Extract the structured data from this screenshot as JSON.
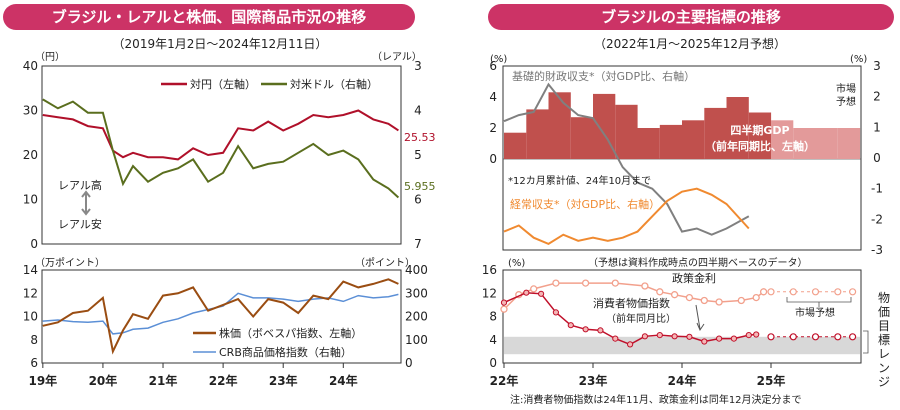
{
  "left_panel": {
    "title": "ブラジル・レアルと株価、国際商品市況の推移",
    "subtitle": "（2019年1月2日～2024年12月11日）",
    "top_chart": {
      "left_unit": "（円）",
      "right_unit": "（レアル）",
      "left_ticks": [
        "40",
        "30",
        "20",
        "10",
        "0"
      ],
      "right_ticks": [
        "3",
        "4",
        "5",
        "6",
        "7"
      ],
      "legend": [
        "対円（左軸）",
        "対米ドル（右軸）"
      ],
      "annotation_high": "レアル高",
      "annotation_low": "レアル安",
      "end_label_jpy": "25.53",
      "end_label_usd": "5.955"
    },
    "bottom_chart": {
      "left_unit": "（万ポイント）",
      "right_unit": "（ポイント）",
      "left_ticks": [
        "14",
        "12",
        "10",
        "8",
        "6"
      ],
      "right_ticks": [
        "400",
        "300",
        "200",
        "100",
        "0"
      ],
      "legend": [
        "株価（ボベスパ指数、左軸）",
        "CRB商品価格指数（右軸）"
      ]
    },
    "x_labels": [
      "19年",
      "20年",
      "21年",
      "22年",
      "23年",
      "24年"
    ]
  },
  "right_panel": {
    "title": "ブラジルの主要指標の推移",
    "subtitle": "（2022年1月～2025年12月予想）",
    "top_chart": {
      "left_unit": "(%)",
      "right_unit": "(%)",
      "left_ticks": [
        "6",
        "4",
        "2",
        "0"
      ],
      "right_ticks": [
        "3",
        "2",
        "1",
        "0",
        "-1",
        "-2",
        "-3"
      ],
      "label_fiscal": "基礎的財政収支*（対GDP比、右軸）",
      "label_gdp_1": "四半期GDP",
      "label_gdp_2": "（前年同期比、左軸）",
      "label_market_1": "市場",
      "label_market_2": "予想",
      "footnote": "*12カ月累計値、24年10月まで",
      "label_current": "経常収支*（対GDP比、右軸）"
    },
    "bottom_chart": {
      "unit": "(%)",
      "note": "（予想は資料作成時点の四半期ベースのデータ）",
      "ticks": [
        "16",
        "12",
        "8",
        "4",
        "0"
      ],
      "label_policy": "政策金利",
      "label_cpi_1": "消費者物価指数",
      "label_cpi_2": "（前年同月比）",
      "label_market": "市場予想",
      "label_target": "物価目標レンジ"
    },
    "x_labels": [
      "22年",
      "23年",
      "24年",
      "25年"
    ],
    "footnote": "注:消費者物価指数は24年11月、政策金利は同年12月決定分まで"
  },
  "colors": {
    "title_bg": "#cc3366",
    "jpy": "#b0102a",
    "usd": "#5a6e1e",
    "stock": "#9a4d12",
    "crb": "#5b8fd6",
    "gdp_bar": "#c0504d",
    "gdp_forecast": "#e39a9a",
    "fiscal": "#808080",
    "current": "#f08a30",
    "cpi": "#c0102a",
    "policy": "#f2a08c",
    "target_band": "#d8d8d8"
  },
  "chart_data": [
    {
      "type": "line",
      "x_range": [
        "2019-01-02",
        "2024-12-11"
      ],
      "ylim_left": [
        0,
        40
      ],
      "ylim_right_inverted": [
        3,
        7
      ],
      "series": [
        {
          "name": "対円（左軸）",
          "axis": "left",
          "points": [
            [
              "2019-01",
              29.0
            ],
            [
              "2019-04",
              28.5
            ],
            [
              "2019-07",
              28.0
            ],
            [
              "2019-10",
              26.5
            ],
            [
              "2020-01",
              26.0
            ],
            [
              "2020-03",
              21.0
            ],
            [
              "2020-05",
              19.5
            ],
            [
              "2020-07",
              20.5
            ],
            [
              "2020-10",
              19.5
            ],
            [
              "2021-01",
              19.5
            ],
            [
              "2021-04",
              19.0
            ],
            [
              "2021-07",
              21.5
            ],
            [
              "2021-10",
              20.0
            ],
            [
              "2022-01",
              20.5
            ],
            [
              "2022-04",
              26.0
            ],
            [
              "2022-07",
              25.5
            ],
            [
              "2022-10",
              27.5
            ],
            [
              "2023-01",
              25.5
            ],
            [
              "2023-04",
              27.0
            ],
            [
              "2023-07",
              29.0
            ],
            [
              "2023-10",
              28.5
            ],
            [
              "2024-01",
              29.0
            ],
            [
              "2024-04",
              30.0
            ],
            [
              "2024-07",
              28.0
            ],
            [
              "2024-10",
              27.0
            ],
            [
              "2024-12",
              25.53
            ]
          ]
        },
        {
          "name": "対米ドル（右軸）",
          "axis": "right",
          "points": [
            [
              "2019-01",
              3.75
            ],
            [
              "2019-04",
              3.95
            ],
            [
              "2019-07",
              3.8
            ],
            [
              "2019-10",
              4.05
            ],
            [
              "2020-01",
              4.05
            ],
            [
              "2020-03",
              4.9
            ],
            [
              "2020-05",
              5.65
            ],
            [
              "2020-07",
              5.25
            ],
            [
              "2020-10",
              5.6
            ],
            [
              "2021-01",
              5.4
            ],
            [
              "2021-04",
              5.3
            ],
            [
              "2021-07",
              5.1
            ],
            [
              "2021-10",
              5.6
            ],
            [
              "2022-01",
              5.4
            ],
            [
              "2022-04",
              4.8
            ],
            [
              "2022-07",
              5.3
            ],
            [
              "2022-10",
              5.2
            ],
            [
              "2023-01",
              5.15
            ],
            [
              "2023-04",
              4.95
            ],
            [
              "2023-07",
              4.75
            ],
            [
              "2023-10",
              5.0
            ],
            [
              "2024-01",
              4.9
            ],
            [
              "2024-04",
              5.1
            ],
            [
              "2024-07",
              5.55
            ],
            [
              "2024-10",
              5.75
            ],
            [
              "2024-12",
              5.955
            ]
          ]
        }
      ]
    },
    {
      "type": "line",
      "x_range": [
        "2019-01-02",
        "2024-12-11"
      ],
      "ylim_left": [
        6,
        14
      ],
      "ylim_right": [
        0,
        400
      ],
      "series": [
        {
          "name": "株価（ボベスパ指数、左軸）",
          "axis": "left",
          "points": [
            [
              "2019-01",
              9.2
            ],
            [
              "2019-04",
              9.5
            ],
            [
              "2019-07",
              10.3
            ],
            [
              "2019-10",
              10.5
            ],
            [
              "2020-01",
              11.6
            ],
            [
              "2020-03",
              7.0
            ],
            [
              "2020-05",
              8.8
            ],
            [
              "2020-07",
              10.2
            ],
            [
              "2020-10",
              9.8
            ],
            [
              "2021-01",
              11.8
            ],
            [
              "2021-04",
              12.0
            ],
            [
              "2021-07",
              12.5
            ],
            [
              "2021-10",
              10.5
            ],
            [
              "2022-01",
              11.0
            ],
            [
              "2022-04",
              11.5
            ],
            [
              "2022-07",
              10.0
            ],
            [
              "2022-10",
              11.5
            ],
            [
              "2023-01",
              11.2
            ],
            [
              "2023-04",
              10.3
            ],
            [
              "2023-07",
              11.8
            ],
            [
              "2023-10",
              11.5
            ],
            [
              "2024-01",
              13.0
            ],
            [
              "2024-04",
              12.5
            ],
            [
              "2024-07",
              12.8
            ],
            [
              "2024-10",
              13.2
            ],
            [
              "2024-12",
              12.8
            ]
          ]
        },
        {
          "name": "CRB商品価格指数（右軸）",
          "axis": "right",
          "points": [
            [
              "2019-01",
              180
            ],
            [
              "2019-04",
              185
            ],
            [
              "2019-07",
              178
            ],
            [
              "2019-10",
              175
            ],
            [
              "2020-01",
              180
            ],
            [
              "2020-03",
              125
            ],
            [
              "2020-05",
              130
            ],
            [
              "2020-07",
              145
            ],
            [
              "2020-10",
              150
            ],
            [
              "2021-01",
              175
            ],
            [
              "2021-04",
              190
            ],
            [
              "2021-07",
              215
            ],
            [
              "2021-10",
              230
            ],
            [
              "2022-01",
              245
            ],
            [
              "2022-04",
              300
            ],
            [
              "2022-07",
              280
            ],
            [
              "2022-10",
              280
            ],
            [
              "2023-01",
              275
            ],
            [
              "2023-04",
              265
            ],
            [
              "2023-07",
              275
            ],
            [
              "2023-10",
              280
            ],
            [
              "2024-01",
              265
            ],
            [
              "2024-04",
              290
            ],
            [
              "2024-07",
              280
            ],
            [
              "2024-10",
              285
            ],
            [
              "2024-12",
              295
            ]
          ]
        }
      ]
    },
    {
      "type": "bar",
      "x_range": [
        "2022-01",
        "2025-12"
      ],
      "ylim_left": [
        0,
        6
      ],
      "ylim_right": [
        -3,
        3
      ],
      "categories": [
        "22Q1",
        "22Q2",
        "22Q3",
        "22Q4",
        "23Q1",
        "23Q2",
        "23Q3",
        "23Q4",
        "24Q1",
        "24Q2",
        "24Q3",
        "24Q4",
        "25Q1",
        "25Q2",
        "25Q3",
        "25Q4"
      ],
      "series": [
        {
          "name": "四半期GDP（前年同期比、左軸）",
          "axis": "left",
          "values": [
            1.7,
            3.2,
            4.3,
            2.7,
            4.2,
            3.5,
            2.0,
            2.2,
            2.5,
            3.3,
            4.0,
            3.0,
            2.5,
            2.0,
            2.0,
            2.0
          ],
          "forecast_from": "25Q1"
        },
        {
          "name": "基礎的財政収支*（対GDP比、右軸）",
          "axis": "right",
          "type": "line",
          "points": [
            [
              "2022-01",
              1.2
            ],
            [
              "2022-03",
              1.4
            ],
            [
              "2022-05",
              1.5
            ],
            [
              "2022-07",
              2.4
            ],
            [
              "2022-09",
              1.8
            ],
            [
              "2022-11",
              1.4
            ],
            [
              "2023-01",
              1.3
            ],
            [
              "2023-03",
              0.6
            ],
            [
              "2023-05",
              -0.3
            ],
            [
              "2023-07",
              -0.8
            ],
            [
              "2023-09",
              -1.0
            ],
            [
              "2023-11",
              -1.5
            ],
            [
              "2024-01",
              -2.4
            ],
            [
              "2024-03",
              -2.3
            ],
            [
              "2024-05",
              -2.5
            ],
            [
              "2024-07",
              -2.3
            ],
            [
              "2024-10",
              -1.9
            ]
          ]
        },
        {
          "name": "経常収支*（対GDP比、右軸）",
          "axis": "right",
          "type": "line",
          "points": [
            [
              "2022-01",
              -2.4
            ],
            [
              "2022-03",
              -2.2
            ],
            [
              "2022-05",
              -2.6
            ],
            [
              "2022-07",
              -2.8
            ],
            [
              "2022-09",
              -2.5
            ],
            [
              "2022-11",
              -2.7
            ],
            [
              "2023-01",
              -2.6
            ],
            [
              "2023-03",
              -2.7
            ],
            [
              "2023-05",
              -2.6
            ],
            [
              "2023-07",
              -2.4
            ],
            [
              "2023-09",
              -1.9
            ],
            [
              "2023-11",
              -1.4
            ],
            [
              "2024-01",
              -1.1
            ],
            [
              "2024-03",
              -1.0
            ],
            [
              "2024-05",
              -1.2
            ],
            [
              "2024-07",
              -1.5
            ],
            [
              "2024-10",
              -2.3
            ]
          ]
        }
      ]
    },
    {
      "type": "line",
      "x_range": [
        "2022-01",
        "2025-12"
      ],
      "ylim": [
        0,
        16
      ],
      "target_band": [
        1.5,
        4.5
      ],
      "series": [
        {
          "name": "政策金利",
          "markers": "circle",
          "points": [
            [
              "2022-01",
              9.25
            ],
            [
              "2022-03",
              11.75
            ],
            [
              "2022-05",
              12.75
            ],
            [
              "2022-08",
              13.75
            ],
            [
              "2022-12",
              13.75
            ],
            [
              "2023-04",
              13.75
            ],
            [
              "2023-08",
              13.25
            ],
            [
              "2023-10",
              12.25
            ],
            [
              "2023-12",
              11.75
            ],
            [
              "2024-02",
              11.25
            ],
            [
              "2024-04",
              10.75
            ],
            [
              "2024-06",
              10.5
            ],
            [
              "2024-09",
              10.75
            ],
            [
              "2024-11",
              11.25
            ],
            [
              "2024-12",
              12.25
            ]
          ]
        },
        {
          "name": "消費者物価指数（前年同月比）",
          "markers": "circle",
          "points": [
            [
              "2022-01",
              10.4
            ],
            [
              "2022-04",
              12.1
            ],
            [
              "2022-06",
              11.9
            ],
            [
              "2022-08",
              8.7
            ],
            [
              "2022-10",
              6.5
            ],
            [
              "2022-12",
              5.8
            ],
            [
              "2023-02",
              5.6
            ],
            [
              "2023-04",
              4.2
            ],
            [
              "2023-06",
              3.2
            ],
            [
              "2023-08",
              4.6
            ],
            [
              "2023-10",
              4.8
            ],
            [
              "2023-12",
              4.6
            ],
            [
              "2024-02",
              4.5
            ],
            [
              "2024-04",
              3.7
            ],
            [
              "2024-06",
              4.2
            ],
            [
              "2024-08",
              4.2
            ],
            [
              "2024-10",
              4.8
            ],
            [
              "2024-11",
              4.9
            ]
          ]
        },
        {
          "name": "市場予想（政策金利）",
          "markers": "circle-open",
          "points": [
            [
              "2025-01",
              12.25
            ],
            [
              "2025-04",
              12.25
            ],
            [
              "2025-07",
              12.25
            ],
            [
              "2025-10",
              12.25
            ],
            [
              "2025-12",
              12.25
            ]
          ]
        },
        {
          "name": "市場予想（消費者物価指数）",
          "markers": "circle-open",
          "points": [
            [
              "2025-01",
              4.5
            ],
            [
              "2025-04",
              4.5
            ],
            [
              "2025-07",
              4.5
            ],
            [
              "2025-10",
              4.5
            ],
            [
              "2025-12",
              4.5
            ]
          ]
        }
      ]
    }
  ]
}
